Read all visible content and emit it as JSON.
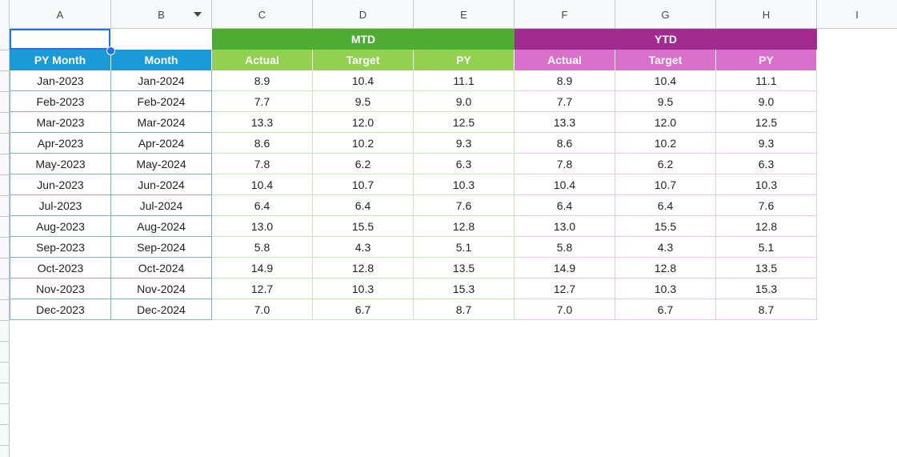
{
  "columns": [
    "A",
    "B",
    "C",
    "D",
    "E",
    "F",
    "G",
    "H",
    "I"
  ],
  "bands": {
    "mtd": "MTD",
    "ytd": "YTD"
  },
  "headers": [
    "PY Month",
    "Month",
    "Actual",
    "Target",
    "PY",
    "Actual",
    "Target",
    "PY"
  ],
  "rows": [
    [
      "Jan-2023",
      "Jan-2024",
      "8.9",
      "10.4",
      "11.1",
      "8.9",
      "10.4",
      "11.1"
    ],
    [
      "Feb-2023",
      "Feb-2024",
      "7.7",
      "9.5",
      "9.0",
      "7.7",
      "9.5",
      "9.0"
    ],
    [
      "Mar-2023",
      "Mar-2024",
      "13.3",
      "12.0",
      "12.5",
      "13.3",
      "12.0",
      "12.5"
    ],
    [
      "Apr-2023",
      "Apr-2024",
      "8.6",
      "10.2",
      "9.3",
      "8.6",
      "10.2",
      "9.3"
    ],
    [
      "May-2023",
      "May-2024",
      "7.8",
      "6.2",
      "6.3",
      "7.8",
      "6.2",
      "6.3"
    ],
    [
      "Jun-2023",
      "Jun-2024",
      "10.4",
      "10.7",
      "10.3",
      "10.4",
      "10.7",
      "10.3"
    ],
    [
      "Jul-2023",
      "Jul-2024",
      "6.4",
      "6.4",
      "7.6",
      "6.4",
      "6.4",
      "7.6"
    ],
    [
      "Aug-2023",
      "Aug-2024",
      "13.0",
      "15.5",
      "12.8",
      "13.0",
      "15.5",
      "12.8"
    ],
    [
      "Sep-2023",
      "Sep-2024",
      "5.8",
      "4.3",
      "5.1",
      "5.8",
      "4.3",
      "5.1"
    ],
    [
      "Oct-2023",
      "Oct-2024",
      "14.9",
      "12.8",
      "13.5",
      "14.9",
      "12.8",
      "13.5"
    ],
    [
      "Nov-2023",
      "Nov-2024",
      "12.7",
      "10.3",
      "15.3",
      "12.7",
      "10.3",
      "15.3"
    ],
    [
      "Dec-2023",
      "Dec-2024",
      "7.0",
      "6.7",
      "8.7",
      "7.0",
      "6.7",
      "8.7"
    ]
  ],
  "colors": {
    "mtd_band": "#4eac33",
    "ytd_band": "#a22b90",
    "header_blue": "#1a9ad6",
    "header_green": "#92d050",
    "header_pink": "#d970cb",
    "selection": "#1a73e8"
  }
}
